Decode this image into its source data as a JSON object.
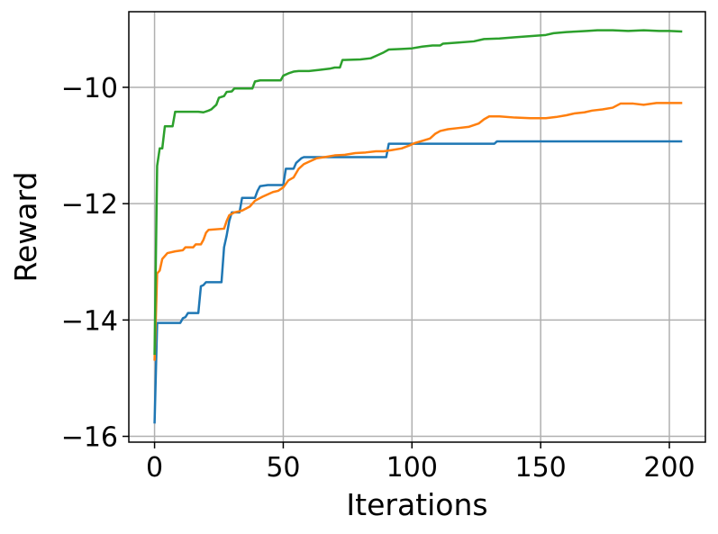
{
  "chart_data": {
    "type": "line",
    "title": "",
    "xlabel": "Iterations",
    "ylabel": "Reward",
    "xlim": [
      -10,
      214
    ],
    "ylim": [
      -16.1,
      -8.7
    ],
    "x_ticks": [
      0,
      50,
      100,
      150,
      200
    ],
    "x_tick_labels": [
      "0",
      "50",
      "100",
      "150",
      "200"
    ],
    "y_ticks": [
      -16,
      -14,
      -12,
      -10
    ],
    "y_tick_labels": [
      "−16",
      "−14",
      "−12",
      "−10"
    ],
    "grid": true,
    "legend": "none",
    "series": [
      {
        "color": "#1f77b4",
        "points": [
          [
            0,
            -15.78
          ],
          [
            1,
            -14.05
          ],
          [
            10,
            -14.05
          ],
          [
            11,
            -13.97
          ],
          [
            12,
            -13.95
          ],
          [
            13,
            -13.88
          ],
          [
            17,
            -13.88
          ],
          [
            18,
            -13.42
          ],
          [
            19,
            -13.4
          ],
          [
            20,
            -13.35
          ],
          [
            26,
            -13.35
          ],
          [
            27,
            -12.75
          ],
          [
            28,
            -12.55
          ],
          [
            29,
            -12.3
          ],
          [
            30,
            -12.15
          ],
          [
            33,
            -12.15
          ],
          [
            34,
            -11.9
          ],
          [
            39,
            -11.9
          ],
          [
            40,
            -11.78
          ],
          [
            41,
            -11.7
          ],
          [
            44,
            -11.68
          ],
          [
            50,
            -11.68
          ],
          [
            51,
            -11.4
          ],
          [
            54,
            -11.4
          ],
          [
            55,
            -11.3
          ],
          [
            57,
            -11.22
          ],
          [
            58,
            -11.2
          ],
          [
            90,
            -11.2
          ],
          [
            91,
            -10.97
          ],
          [
            132,
            -10.97
          ],
          [
            133,
            -10.93
          ],
          [
            205,
            -10.93
          ]
        ]
      },
      {
        "color": "#ff7f0e",
        "points": [
          [
            0,
            -14.7
          ],
          [
            1,
            -13.2
          ],
          [
            2,
            -13.15
          ],
          [
            3,
            -12.95
          ],
          [
            5,
            -12.85
          ],
          [
            8,
            -12.82
          ],
          [
            11,
            -12.8
          ],
          [
            12,
            -12.75
          ],
          [
            15,
            -12.75
          ],
          [
            16,
            -12.7
          ],
          [
            18,
            -12.7
          ],
          [
            19,
            -12.62
          ],
          [
            20,
            -12.5
          ],
          [
            21,
            -12.45
          ],
          [
            27,
            -12.43
          ],
          [
            28,
            -12.3
          ],
          [
            29,
            -12.2
          ],
          [
            31,
            -12.15
          ],
          [
            34,
            -12.12
          ],
          [
            37,
            -12.05
          ],
          [
            39,
            -11.95
          ],
          [
            42,
            -11.88
          ],
          [
            46,
            -11.8
          ],
          [
            48,
            -11.78
          ],
          [
            50,
            -11.72
          ],
          [
            52,
            -11.6
          ],
          [
            54,
            -11.55
          ],
          [
            56,
            -11.4
          ],
          [
            58,
            -11.32
          ],
          [
            60,
            -11.28
          ],
          [
            63,
            -11.22
          ],
          [
            66,
            -11.2
          ],
          [
            70,
            -11.17
          ],
          [
            74,
            -11.16
          ],
          [
            78,
            -11.13
          ],
          [
            82,
            -11.12
          ],
          [
            86,
            -11.1
          ],
          [
            89,
            -11.1
          ],
          [
            92,
            -11.08
          ],
          [
            96,
            -11.05
          ],
          [
            99,
            -11.0
          ],
          [
            101,
            -10.96
          ],
          [
            104,
            -10.92
          ],
          [
            107,
            -10.88
          ],
          [
            109,
            -10.8
          ],
          [
            111,
            -10.75
          ],
          [
            114,
            -10.72
          ],
          [
            118,
            -10.7
          ],
          [
            122,
            -10.68
          ],
          [
            126,
            -10.62
          ],
          [
            128,
            -10.55
          ],
          [
            130,
            -10.5
          ],
          [
            134,
            -10.5
          ],
          [
            140,
            -10.52
          ],
          [
            146,
            -10.53
          ],
          [
            152,
            -10.53
          ],
          [
            156,
            -10.51
          ],
          [
            160,
            -10.48
          ],
          [
            163,
            -10.45
          ],
          [
            167,
            -10.43
          ],
          [
            170,
            -10.4
          ],
          [
            174,
            -10.38
          ],
          [
            178,
            -10.35
          ],
          [
            181,
            -10.28
          ],
          [
            186,
            -10.28
          ],
          [
            190,
            -10.3
          ],
          [
            195,
            -10.27
          ],
          [
            200,
            -10.27
          ],
          [
            205,
            -10.27
          ]
        ]
      },
      {
        "color": "#2ca02c",
        "points": [
          [
            0,
            -14.6
          ],
          [
            1,
            -11.35
          ],
          [
            2,
            -11.05
          ],
          [
            3,
            -11.05
          ],
          [
            4,
            -10.67
          ],
          [
            7,
            -10.67
          ],
          [
            8,
            -10.42
          ],
          [
            17,
            -10.42
          ],
          [
            19,
            -10.43
          ],
          [
            21,
            -10.4
          ],
          [
            22,
            -10.38
          ],
          [
            24,
            -10.3
          ],
          [
            25,
            -10.18
          ],
          [
            27,
            -10.15
          ],
          [
            28,
            -10.08
          ],
          [
            30,
            -10.07
          ],
          [
            31,
            -10.02
          ],
          [
            38,
            -10.02
          ],
          [
            39,
            -9.9
          ],
          [
            41,
            -9.88
          ],
          [
            49,
            -9.88
          ],
          [
            50,
            -9.8
          ],
          [
            52,
            -9.76
          ],
          [
            54,
            -9.73
          ],
          [
            56,
            -9.72
          ],
          [
            60,
            -9.72
          ],
          [
            64,
            -9.7
          ],
          [
            68,
            -9.68
          ],
          [
            70,
            -9.66
          ],
          [
            72,
            -9.66
          ],
          [
            73,
            -9.53
          ],
          [
            80,
            -9.52
          ],
          [
            84,
            -9.5
          ],
          [
            86,
            -9.46
          ],
          [
            89,
            -9.4
          ],
          [
            91,
            -9.35
          ],
          [
            96,
            -9.34
          ],
          [
            100,
            -9.33
          ],
          [
            104,
            -9.3
          ],
          [
            108,
            -9.28
          ],
          [
            111,
            -9.28
          ],
          [
            112,
            -9.25
          ],
          [
            118,
            -9.23
          ],
          [
            124,
            -9.21
          ],
          [
            128,
            -9.17
          ],
          [
            134,
            -9.16
          ],
          [
            140,
            -9.14
          ],
          [
            146,
            -9.12
          ],
          [
            152,
            -9.1
          ],
          [
            155,
            -9.07
          ],
          [
            160,
            -9.05
          ],
          [
            164,
            -9.04
          ],
          [
            168,
            -9.03
          ],
          [
            172,
            -9.02
          ],
          [
            178,
            -9.02
          ],
          [
            184,
            -9.03
          ],
          [
            190,
            -9.02
          ],
          [
            196,
            -9.03
          ],
          [
            200,
            -9.03
          ],
          [
            205,
            -9.04
          ]
        ]
      }
    ]
  }
}
